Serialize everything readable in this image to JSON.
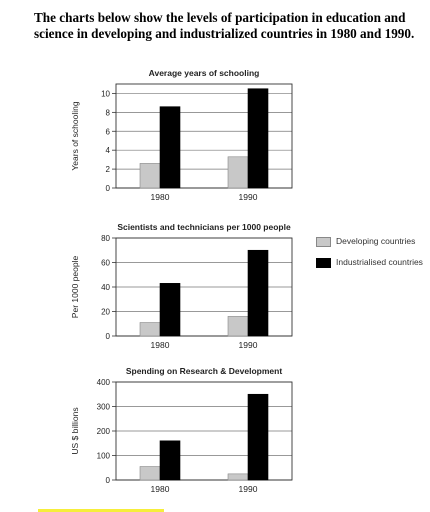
{
  "heading": "The charts below show the levels of participation in education and science in developing and industrialized countries in 1980 and 1990.",
  "legend": {
    "items": [
      {
        "label": "Developing countries",
        "color": "#c8c8c8"
      },
      {
        "label": "Industrialised countries",
        "color": "#000000"
      }
    ]
  },
  "chart_data": [
    {
      "type": "bar",
      "title": "Average years of schooling",
      "ylabel": "Years of schooling",
      "categories": [
        "1980",
        "1990"
      ],
      "ylim": [
        0,
        11
      ],
      "yticks": [
        0,
        2,
        4,
        6,
        8,
        10
      ],
      "series": [
        {
          "name": "Developing countries",
          "values": [
            2.6,
            3.3
          ],
          "color": "#c8c8c8"
        },
        {
          "name": "Industrialised countries",
          "values": [
            8.6,
            10.5
          ],
          "color": "#000000"
        }
      ]
    },
    {
      "type": "bar",
      "title": "Scientists and technicians per 1000 people",
      "ylabel": "Per 1000 people",
      "categories": [
        "1980",
        "1990"
      ],
      "ylim": [
        0,
        80
      ],
      "yticks": [
        0,
        20,
        40,
        60,
        80
      ],
      "series": [
        {
          "name": "Developing countries",
          "values": [
            11,
            16
          ],
          "color": "#c8c8c8"
        },
        {
          "name": "Industrialised countries",
          "values": [
            43,
            70
          ],
          "color": "#000000"
        }
      ]
    },
    {
      "type": "bar",
      "title": "Spending on Research & Development",
      "ylabel": "US $ billions",
      "categories": [
        "1980",
        "1990"
      ],
      "ylim": [
        0,
        400
      ],
      "yticks": [
        0,
        100,
        200,
        300,
        400
      ],
      "series": [
        {
          "name": "Developing countries",
          "values": [
            55,
            25
          ],
          "color": "#c8c8c8"
        },
        {
          "name": "Industrialised countries",
          "values": [
            160,
            350
          ],
          "color": "#000000"
        }
      ]
    }
  ]
}
